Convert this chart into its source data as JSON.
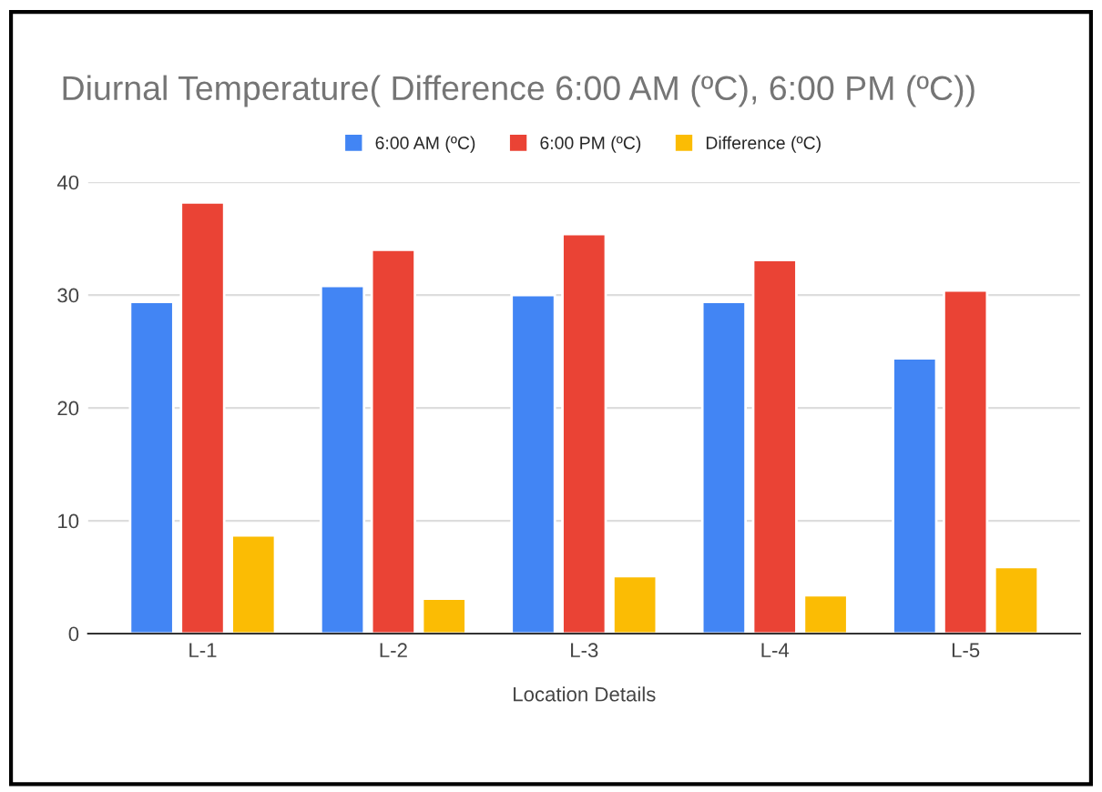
{
  "chart_data": {
    "type": "bar",
    "title": "Diurnal Temperature( Difference 6:00 AM (ºC), 6:00 PM (ºC))",
    "xlabel": "Location Details",
    "categories": [
      "L-1",
      "L-2",
      "L-3",
      "L-4",
      "L-5"
    ],
    "series": [
      {
        "name": "6:00 AM (ºC)",
        "color": "#4285f4",
        "values": [
          29.4,
          30.8,
          30.0,
          29.4,
          24.4
        ]
      },
      {
        "name": "6:00 PM (ºC)",
        "color": "#ea4335",
        "values": [
          38.2,
          34.0,
          35.4,
          33.1,
          30.4
        ]
      },
      {
        "name": "Difference (ºC)",
        "color": "#fbbc04",
        "values": [
          8.7,
          3.1,
          5.1,
          3.4,
          5.9
        ]
      }
    ],
    "ylim": [
      0,
      40
    ],
    "yticks": [
      0,
      10,
      20,
      30,
      40
    ],
    "grid": "y",
    "legend": "top"
  }
}
